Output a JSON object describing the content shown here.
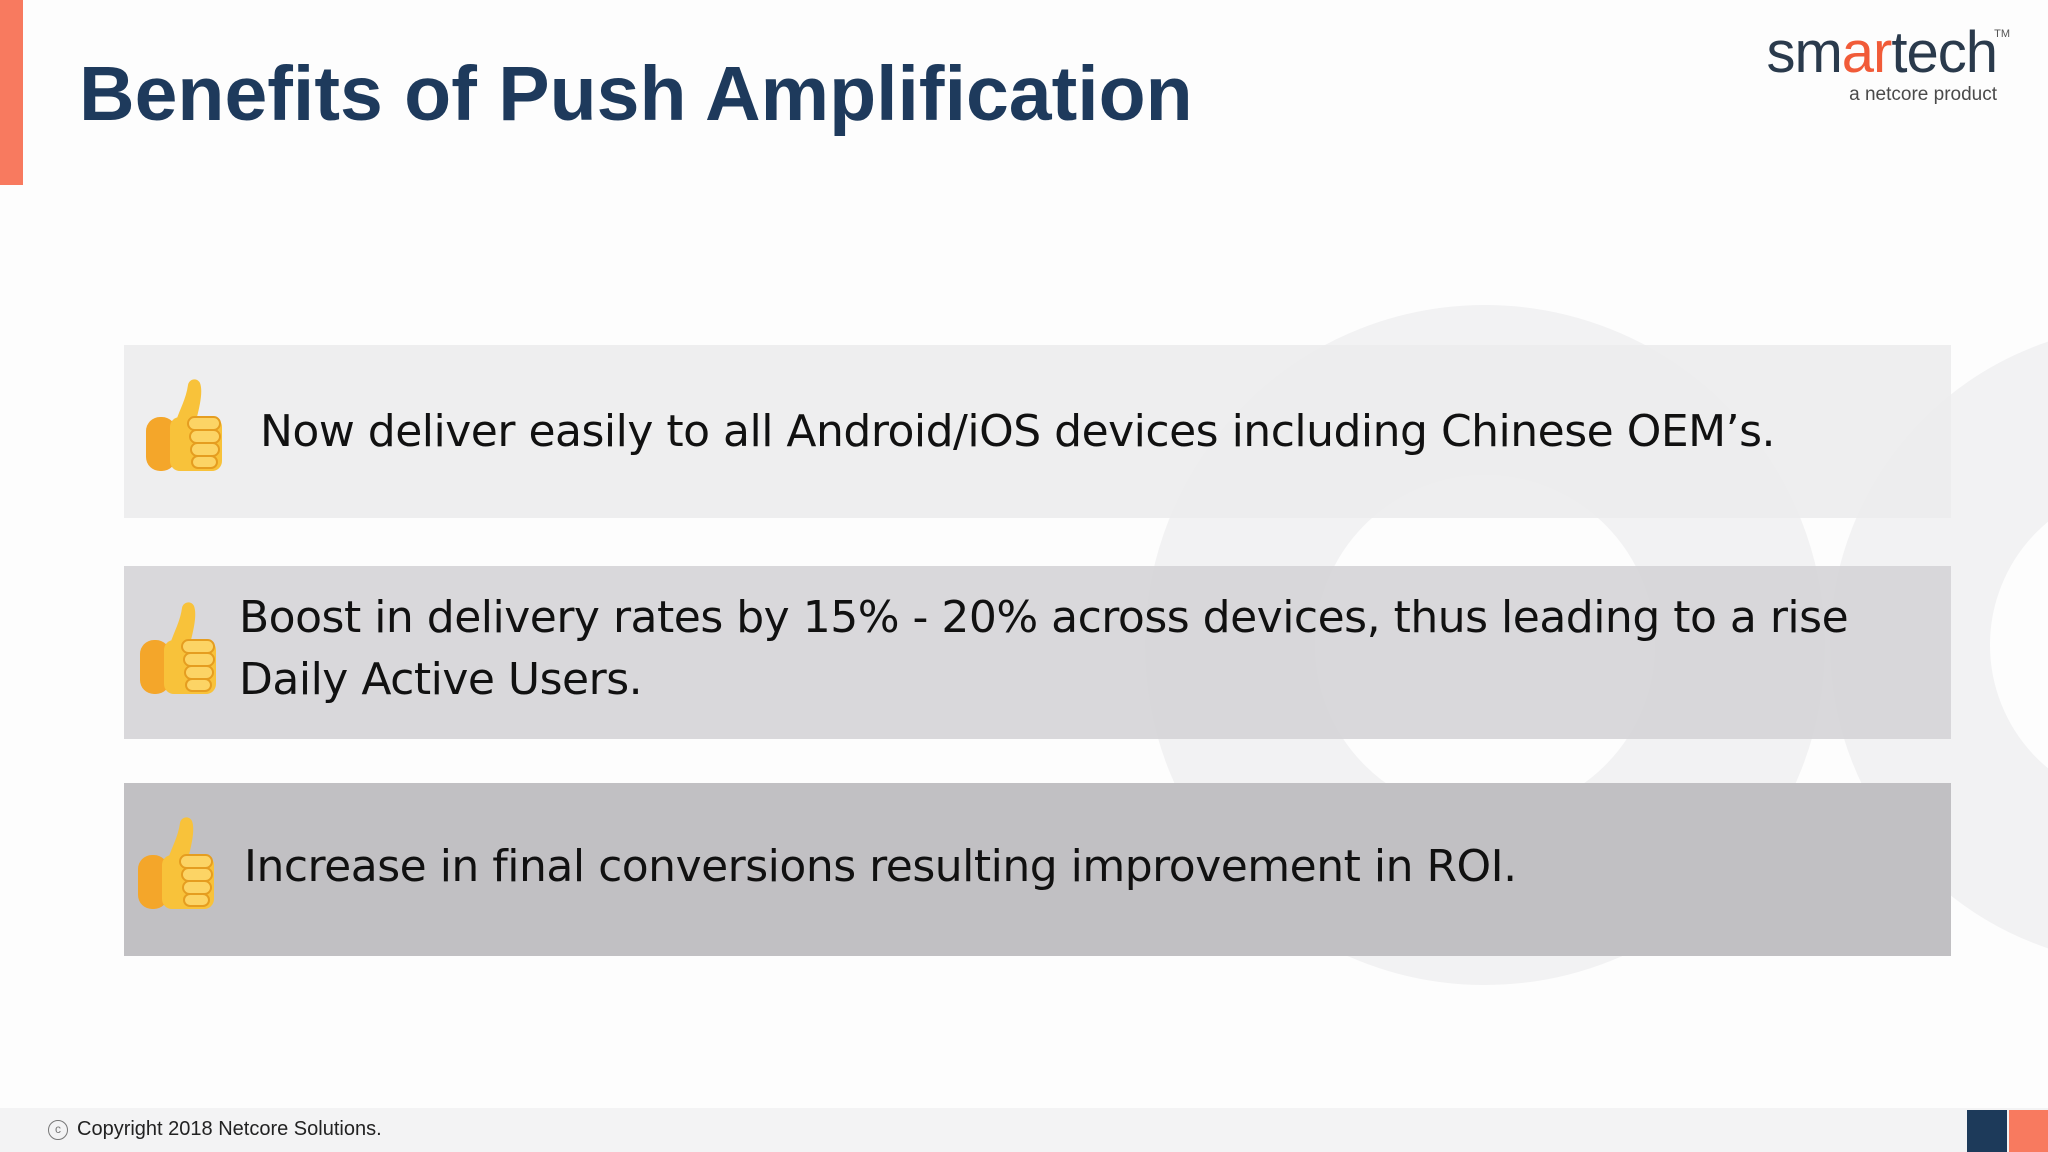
{
  "slide": {
    "title": "Benefits of Push Amplification"
  },
  "logo": {
    "word_start": "sm",
    "word_highlight": "ar",
    "word_end": "tech",
    "trademark": "TM",
    "tagline": "a netcore product"
  },
  "benefits": [
    {
      "icon": "thumbs-up-icon",
      "text": "Now deliver easily to all Android/iOS devices including Chinese OEM’s."
    },
    {
      "icon": "thumbs-up-icon",
      "text": "Boost in delivery rates by 15% - 20% across devices, thus leading to a rise Daily Active Users."
    },
    {
      "icon": "thumbs-up-icon",
      "text": "Increase in final conversions resulting improvement in ROI."
    }
  ],
  "footer": {
    "copyright_symbol": "c",
    "copyright_text": "Copyright 2018 Netcore Solutions."
  },
  "colors": {
    "title": "#1e3a5c",
    "accent_orange": "#f87a5f",
    "accent_navy": "#1d3a5a",
    "logo_orange": "#f15b38"
  }
}
